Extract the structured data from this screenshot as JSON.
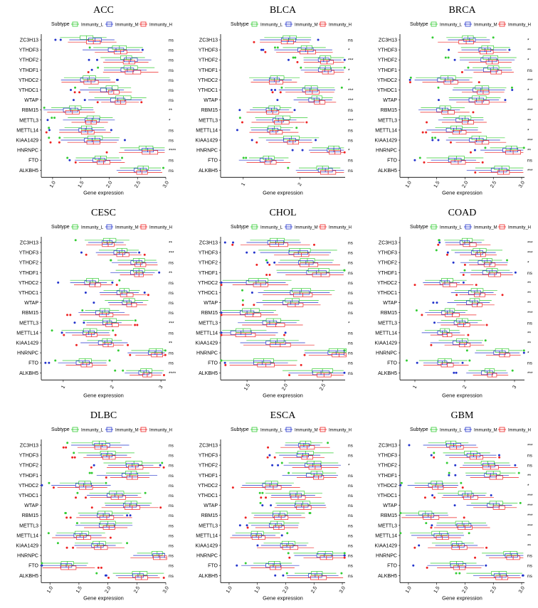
{
  "legend": {
    "title": "Subtype",
    "items": [
      {
        "name": "Immunity_L",
        "color": "#33cc33"
      },
      {
        "name": "Immunity_M",
        "color": "#2233cc"
      },
      {
        "name": "Immunity_H",
        "color": "#ee2222"
      }
    ]
  },
  "genes": [
    "ZC3H13",
    "YTHDF3",
    "YTHDF2",
    "YTHDF1",
    "YTHDC2",
    "YTHDC1",
    "WTAP",
    "RBM15",
    "METTL3",
    "METTL14",
    "KIAA1429",
    "HNRNPC",
    "FTO",
    "ALKBH5"
  ],
  "chart_data": [
    {
      "type": "boxplot",
      "title": "ACC",
      "xlabel": "Gene expression",
      "xlim": [
        0.8,
        3.0
      ],
      "ticks": [
        1.0,
        1.5,
        2.0,
        2.5,
        3.0
      ],
      "tick_labels": [
        "1.0",
        "1.5",
        "2.0",
        "2.5",
        "3.0"
      ],
      "medians": [
        [
          1.6,
          1.75,
          1.72
        ],
        [
          2.18,
          2.12,
          2.2
        ],
        [
          2.3,
          2.38,
          2.35
        ],
        [
          2.38,
          2.32,
          2.42
        ],
        [
          1.65,
          1.62,
          1.68
        ],
        [
          2.05,
          1.95,
          2.08
        ],
        [
          2.25,
          2.15,
          2.2
        ],
        [
          1.4,
          1.32,
          1.35
        ],
        [
          1.72,
          1.7,
          1.68
        ],
        [
          1.6,
          1.58,
          1.62
        ],
        [
          1.75,
          1.7,
          1.72
        ],
        [
          2.65,
          2.68,
          2.72
        ],
        [
          1.85,
          1.82,
          1.9
        ],
        [
          2.6,
          2.55,
          2.58
        ]
      ],
      "significance": [
        "ns",
        "ns",
        "ns",
        "ns",
        "ns",
        "ns",
        "ns",
        "**",
        "*",
        "ns",
        "ns",
        "****",
        "ns",
        "ns"
      ]
    },
    {
      "type": "boxplot",
      "title": "BLCA",
      "xlabel": "Gene expression",
      "xlim": [
        0.6,
        2.8
      ],
      "ticks": [
        1,
        2
      ],
      "tick_labels": [
        "1",
        "2"
      ],
      "medians": [
        [
          1.82,
          1.8,
          1.78
        ],
        [
          2.12,
          2.1,
          2.14
        ],
        [
          2.45,
          2.42,
          2.48
        ],
        [
          2.45,
          2.44,
          2.5
        ],
        [
          1.6,
          1.55,
          1.58
        ],
        [
          2.2,
          2.18,
          2.22
        ],
        [
          2.3,
          2.25,
          2.35
        ],
        [
          1.55,
          1.5,
          1.52
        ],
        [
          1.7,
          1.62,
          1.68
        ],
        [
          1.55,
          1.52,
          1.58
        ],
        [
          1.85,
          1.82,
          1.88
        ],
        [
          2.6,
          2.6,
          2.62
        ],
        [
          1.45,
          1.4,
          1.48
        ],
        [
          2.4,
          2.45,
          2.5
        ]
      ],
      "significance": [
        "ns",
        "*",
        "***",
        "*",
        "*",
        "***",
        "***",
        "ns",
        "***",
        "ns",
        "ns",
        "*",
        "ns",
        "ns"
      ]
    },
    {
      "type": "boxplot",
      "title": "BRCA",
      "xlabel": "Gene expression",
      "xlim": [
        0.85,
        3.05
      ],
      "ticks": [
        1.0,
        1.5,
        2.0,
        2.5,
        3.0
      ],
      "tick_labels": [
        "1.0",
        "1.5",
        "2.0",
        "2.5",
        "3.0"
      ],
      "medians": [
        [
          2.05,
          2.08,
          2.02
        ],
        [
          2.4,
          2.35,
          2.38
        ],
        [
          2.45,
          2.42,
          2.48
        ],
        [
          2.5,
          2.45,
          2.55
        ],
        [
          1.7,
          1.65,
          1.75
        ],
        [
          2.3,
          2.28,
          2.32
        ],
        [
          2.25,
          2.2,
          2.3
        ],
        [
          1.65,
          1.6,
          1.7
        ],
        [
          2.0,
          1.95,
          2.05
        ],
        [
          1.85,
          1.8,
          1.9
        ],
        [
          2.25,
          2.2,
          2.3
        ],
        [
          2.82,
          2.8,
          2.85
        ],
        [
          1.85,
          1.82,
          1.88
        ],
        [
          2.65,
          2.6,
          2.68
        ]
      ],
      "significance": [
        "*",
        "**",
        "*",
        "ns",
        "***",
        "*",
        "***",
        "***",
        "**",
        "*",
        "***",
        "**",
        "ns",
        "***"
      ]
    },
    {
      "type": "boxplot",
      "title": "CESC",
      "xlabel": "Gene expression",
      "xlim": [
        0.55,
        3.1
      ],
      "ticks": [
        1,
        2,
        3
      ],
      "tick_labels": [
        "1",
        "2",
        "3"
      ],
      "medians": [
        [
          1.95,
          1.9,
          1.92
        ],
        [
          2.2,
          2.15,
          2.22
        ],
        [
          2.55,
          2.5,
          2.58
        ],
        [
          2.55,
          2.5,
          2.55
        ],
        [
          1.6,
          1.55,
          1.65
        ],
        [
          2.25,
          2.2,
          2.3
        ],
        [
          2.35,
          2.3,
          2.4
        ],
        [
          1.85,
          1.8,
          1.88
        ],
        [
          1.95,
          1.9,
          2.0
        ],
        [
          1.55,
          1.52,
          1.58
        ],
        [
          1.9,
          1.85,
          1.92
        ],
        [
          2.9,
          2.88,
          2.92
        ],
        [
          1.45,
          1.4,
          1.48
        ],
        [
          2.7,
          2.65,
          2.72
        ]
      ],
      "significance": [
        "**",
        "***",
        "ns",
        "**",
        "ns",
        "ns",
        "ns",
        "ns",
        "***",
        "ns",
        "**",
        "ns",
        "ns",
        "****"
      ]
    },
    {
      "type": "boxplot",
      "title": "CHOL",
      "xlabel": "Gene expression",
      "xlim": [
        1.15,
        2.8
      ],
      "ticks": [
        1.5,
        2.0,
        2.5
      ],
      "tick_labels": [
        "1.5",
        "2.0",
        "2.5"
      ],
      "medians": [
        [
          1.9,
          1.88,
          1.92
        ],
        [
          2.2,
          2.18,
          2.22
        ],
        [
          2.3,
          2.28,
          2.32
        ],
        [
          2.45,
          2.42,
          2.48
        ],
        [
          1.65,
          1.62,
          1.68
        ],
        [
          2.22,
          2.2,
          2.24
        ],
        [
          2.1,
          2.08,
          2.14
        ],
        [
          1.55,
          1.5,
          1.58
        ],
        [
          1.85,
          1.8,
          1.88
        ],
        [
          1.45,
          1.42,
          1.48
        ],
        [
          1.9,
          1.88,
          1.94
        ],
        [
          2.7,
          2.68,
          2.72
        ],
        [
          1.72,
          1.7,
          1.75
        ],
        [
          2.5,
          2.48,
          2.52
        ]
      ],
      "significance": [
        "ns",
        "ns",
        "ns",
        "ns",
        "ns",
        "ns",
        "ns",
        "ns",
        "*",
        "ns",
        "ns",
        "ns",
        "ns",
        "ns"
      ]
    },
    {
      "type": "boxplot",
      "title": "COAD",
      "xlabel": "Gene expression",
      "xlim": [
        0.7,
        3.2
      ],
      "ticks": [
        1,
        2,
        3
      ],
      "tick_labels": [
        "1",
        "2",
        "3"
      ],
      "medians": [
        [
          2.05,
          2.0,
          2.1
        ],
        [
          2.3,
          2.25,
          2.32
        ],
        [
          2.45,
          2.4,
          2.5
        ],
        [
          2.55,
          2.5,
          2.6
        ],
        [
          1.65,
          1.6,
          1.7
        ],
        [
          2.25,
          2.2,
          2.3
        ],
        [
          2.2,
          2.15,
          2.25
        ],
        [
          1.7,
          1.65,
          1.75
        ],
        [
          1.95,
          1.9,
          1.98
        ],
        [
          1.6,
          1.55,
          1.65
        ],
        [
          1.95,
          1.9,
          2.0
        ],
        [
          2.75,
          2.7,
          2.8
        ],
        [
          1.6,
          1.55,
          1.65
        ],
        [
          2.5,
          2.45,
          2.55
        ]
      ],
      "significance": [
        "***",
        "***",
        "*",
        "ns",
        "**",
        "**",
        "**",
        "***",
        "ns",
        "**",
        "**",
        "*",
        "ns",
        "***"
      ]
    },
    {
      "type": "boxplot",
      "title": "DLBC",
      "xlabel": "Gene expression",
      "xlim": [
        0.85,
        3.0
      ],
      "ticks": [
        1.0,
        1.5,
        2.0,
        2.5,
        3.0
      ],
      "tick_labels": [
        "1.0",
        "1.5",
        "2.0",
        "2.5",
        "3.0"
      ],
      "medians": [
        [
          1.85,
          1.9,
          1.88
        ],
        [
          2.0,
          1.98,
          2.02
        ],
        [
          2.45,
          2.42,
          2.48
        ],
        [
          2.4,
          2.38,
          2.42
        ],
        [
          1.6,
          1.58,
          1.62
        ],
        [
          2.15,
          2.12,
          2.18
        ],
        [
          2.4,
          2.38,
          2.42
        ],
        [
          1.95,
          1.92,
          1.98
        ],
        [
          2.0,
          1.98,
          2.02
        ],
        [
          1.55,
          1.52,
          1.58
        ],
        [
          1.85,
          1.82,
          1.88
        ],
        [
          2.85,
          2.88,
          2.9
        ],
        [
          1.3,
          1.28,
          1.32
        ],
        [
          2.55,
          2.52,
          2.58
        ]
      ],
      "significance": [
        "ns",
        "ns",
        "ns",
        "ns",
        "ns",
        "ns",
        "ns",
        "ns",
        "ns",
        "ns",
        "ns",
        "ns",
        "ns",
        "ns"
      ]
    },
    {
      "type": "boxplot",
      "title": "ESCA",
      "xlabel": "Gene expression",
      "xlim": [
        0.85,
        3.05
      ],
      "ticks": [
        1.0,
        1.5,
        2.0,
        2.5,
        3.0
      ],
      "tick_labels": [
        "1.0",
        "1.5",
        "2.0",
        "2.5",
        "3.0"
      ],
      "medians": [
        [
          2.35,
          2.32,
          2.38
        ],
        [
          2.35,
          2.3,
          2.38
        ],
        [
          2.5,
          2.48,
          2.52
        ],
        [
          2.55,
          2.5,
          2.58
        ],
        [
          1.75,
          1.72,
          1.78
        ],
        [
          2.2,
          2.18,
          2.22
        ],
        [
          2.3,
          2.28,
          2.32
        ],
        [
          1.9,
          1.88,
          1.92
        ],
        [
          1.85,
          1.82,
          1.88
        ],
        [
          1.5,
          1.48,
          1.52
        ],
        [
          2.05,
          2.02,
          2.08
        ],
        [
          2.7,
          2.68,
          2.72
        ],
        [
          1.8,
          1.78,
          1.82
        ],
        [
          2.55,
          2.52,
          2.58
        ]
      ],
      "significance": [
        "ns",
        "ns",
        "*",
        "ns",
        "ns",
        "ns",
        "ns",
        "ns",
        "ns",
        "ns",
        "ns",
        "ns",
        "ns",
        "ns"
      ]
    },
    {
      "type": "boxplot",
      "title": "GBM",
      "xlabel": "Gene expression",
      "xlim": [
        0.85,
        3.05
      ],
      "ticks": [
        1.0,
        1.5,
        2.0,
        2.5,
        3.0
      ],
      "tick_labels": [
        "1.0",
        "1.5",
        "2.0",
        "2.5",
        "3.0"
      ],
      "medians": [
        [
          1.75,
          1.8,
          1.85
        ],
        [
          2.1,
          2.15,
          2.2
        ],
        [
          2.4,
          2.42,
          2.45
        ],
        [
          2.5,
          2.45,
          2.55
        ],
        [
          1.5,
          1.48,
          1.52
        ],
        [
          2.0,
          2.05,
          2.1
        ],
        [
          2.55,
          2.5,
          2.6
        ],
        [
          1.3,
          1.35,
          1.4
        ],
        [
          1.95,
          1.98,
          2.0
        ],
        [
          1.55,
          1.58,
          1.6
        ],
        [
          1.85,
          1.88,
          1.9
        ],
        [
          2.8,
          2.82,
          2.85
        ],
        [
          1.85,
          1.88,
          1.9
        ],
        [
          2.6,
          2.62,
          2.65
        ]
      ],
      "significance": [
        "***",
        "ns",
        "ns",
        "**",
        "*",
        "***",
        "***",
        "***",
        "***",
        "**",
        "**",
        "ns",
        "ns",
        "ns"
      ]
    }
  ]
}
